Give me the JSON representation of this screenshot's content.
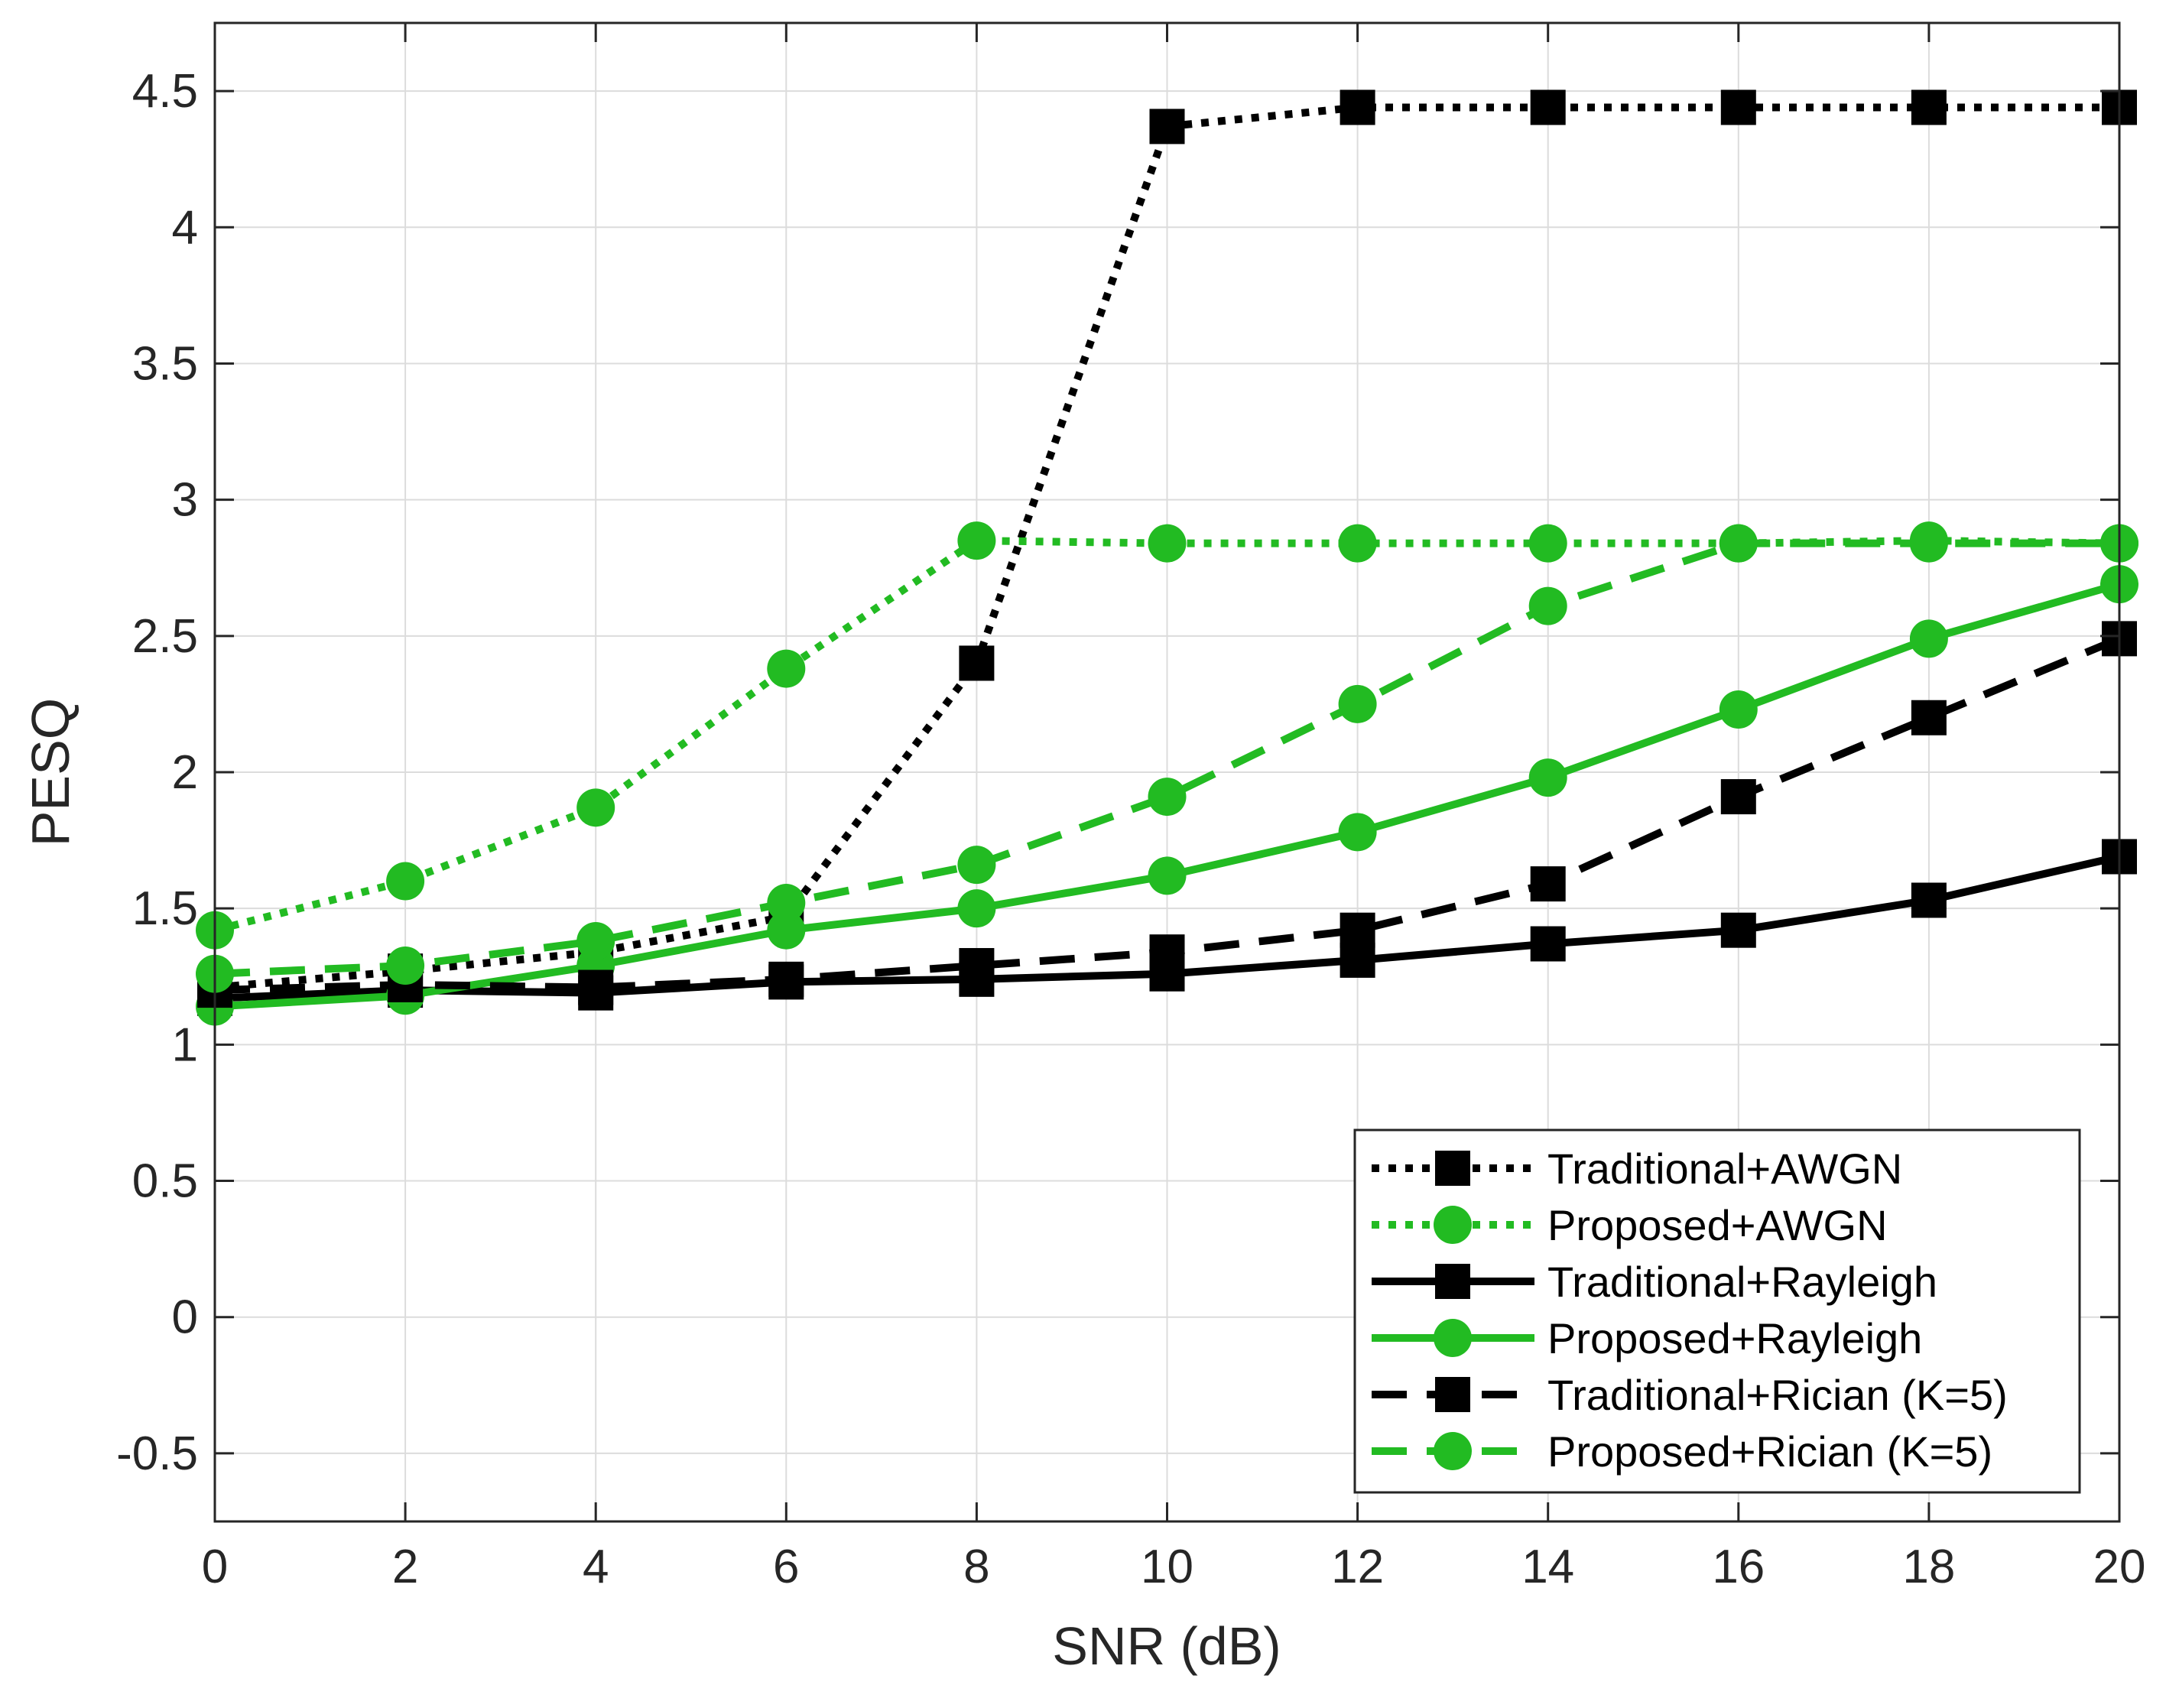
{
  "chart_data": {
    "type": "line",
    "title": "",
    "xlabel": "SNR (dB)",
    "ylabel": "PESQ",
    "xlim": [
      0,
      20
    ],
    "ylim": [
      -0.75,
      4.75
    ],
    "xticks": [
      0,
      2,
      4,
      6,
      8,
      10,
      12,
      14,
      16,
      18,
      20
    ],
    "yticks": [
      -0.5,
      0,
      0.5,
      1,
      1.5,
      2,
      2.5,
      3,
      3.5,
      4,
      4.5
    ],
    "xtick_labels": [
      "0",
      "2",
      "4",
      "6",
      "8",
      "10",
      "12",
      "14",
      "16",
      "18",
      "20"
    ],
    "ytick_labels": [
      "-0.5",
      "0",
      "0.5",
      "1",
      "1.5",
      "2",
      "2.5",
      "3",
      "3.5",
      "4",
      "4.5"
    ],
    "grid": true,
    "legend_position": "bottom-right",
    "x": [
      0,
      2,
      4,
      6,
      8,
      10,
      12,
      14,
      16,
      18,
      20
    ],
    "series": [
      {
        "name": "Traditional+AWGN",
        "color": "#000000",
        "line_style": "dotted",
        "marker": "square",
        "values": [
          1.21,
          1.27,
          1.34,
          1.47,
          2.4,
          4.37,
          4.44,
          4.44,
          4.44,
          4.44,
          4.44
        ]
      },
      {
        "name": "Proposed+AWGN",
        "color": "#22bb22",
        "line_style": "dotted",
        "marker": "circle",
        "values": [
          1.42,
          1.6,
          1.87,
          2.38,
          2.85,
          2.84,
          2.84,
          2.84,
          2.84,
          2.85,
          2.84
        ]
      },
      {
        "name": "Traditional+Rayleigh",
        "color": "#000000",
        "line_style": "solid",
        "marker": "square",
        "values": [
          1.17,
          1.2,
          1.19,
          1.23,
          1.24,
          1.26,
          1.31,
          1.37,
          1.42,
          1.53,
          1.69
        ]
      },
      {
        "name": "Proposed+Rayleigh",
        "color": "#22bb22",
        "line_style": "solid",
        "marker": "circle",
        "values": [
          1.14,
          1.18,
          1.29,
          1.42,
          1.5,
          1.62,
          1.78,
          1.98,
          2.23,
          2.49,
          2.69
        ]
      },
      {
        "name": "Traditional+Rician (K=5)",
        "color": "#000000",
        "line_style": "dashed",
        "marker": "square",
        "values": [
          1.2,
          1.22,
          1.21,
          1.24,
          1.29,
          1.34,
          1.42,
          1.59,
          1.91,
          2.2,
          2.49
        ]
      },
      {
        "name": "Proposed+Rician (K=5)",
        "color": "#22bb22",
        "line_style": "dashed",
        "marker": "circle",
        "values": [
          1.26,
          1.29,
          1.38,
          1.52,
          1.66,
          1.91,
          2.25,
          2.61,
          2.84,
          2.84,
          2.84
        ]
      }
    ]
  }
}
